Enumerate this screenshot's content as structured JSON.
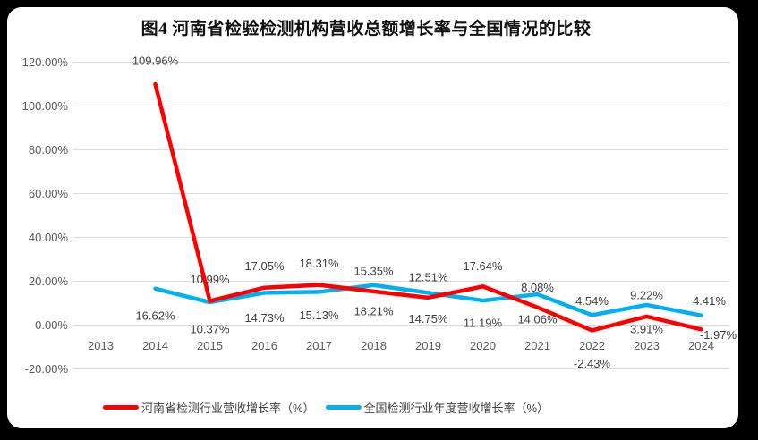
{
  "frame": {
    "outer_bg": "#000000",
    "panel_bg": "#ffffff"
  },
  "colors": {
    "grid": "#DCDCDC",
    "axis_text": "#595959",
    "label_text": "#3F3F3F",
    "leader": "#BFBFBF",
    "henan_red": "#FF0000",
    "national_blue": "#00B0F0"
  },
  "chart_data": {
    "type": "line",
    "title": "图4  河南省检验检测机构营收总额增长率与全国情况的比较",
    "categories": [
      "2013",
      "2014",
      "2015",
      "2016",
      "2017",
      "2018",
      "2019",
      "2020",
      "2021",
      "2022",
      "2023",
      "2024"
    ],
    "xlabel": "",
    "ylabel": "",
    "ylim": [
      -20,
      120
    ],
    "grid": true,
    "legend_position": "bottom",
    "y_ticks": [
      {
        "label": "120.00%",
        "value": 120
      },
      {
        "label": "100.00%",
        "value": 100
      },
      {
        "label": "80.00%",
        "value": 80
      },
      {
        "label": "60.00%",
        "value": 60
      },
      {
        "label": "40.00%",
        "value": 40
      },
      {
        "label": "20.00%",
        "value": 20
      },
      {
        "label": "0.00%",
        "value": 0
      },
      {
        "label": "-20.00%",
        "value": -20
      }
    ],
    "series": [
      {
        "name": "河南省检测行业营收增长率（%）",
        "color": "#FF0000",
        "values": [
          null,
          109.96,
          10.99,
          17.05,
          18.31,
          15.35,
          12.51,
          17.64,
          8.08,
          -2.43,
          3.91,
          -1.97
        ],
        "label_offsets": [
          null,
          [
            0,
            -26
          ],
          [
            0,
            -24
          ],
          [
            0,
            -24
          ],
          [
            0,
            -24
          ],
          [
            0,
            -23
          ],
          [
            0,
            -23
          ],
          [
            0,
            -23
          ],
          [
            0,
            -22
          ],
          [
            0,
            37
          ],
          [
            0,
            14
          ],
          [
            19,
            6
          ]
        ]
      },
      {
        "name": "全国检测行业年度营收增长率（%）",
        "color": "#00B0F0",
        "values": [
          null,
          16.62,
          10.37,
          14.73,
          15.13,
          18.21,
          14.75,
          11.19,
          14.06,
          4.54,
          9.22,
          4.41
        ],
        "label_offsets": [
          null,
          [
            0,
            30
          ],
          [
            0,
            30
          ],
          [
            0,
            28
          ],
          [
            0,
            26
          ],
          [
            0,
            29
          ],
          [
            0,
            29
          ],
          [
            0,
            25
          ],
          [
            0,
            28
          ],
          [
            0,
            -16
          ],
          [
            0,
            -11
          ],
          [
            9,
            -16
          ]
        ]
      }
    ],
    "leader_line": {
      "series_index": 0,
      "point_index": 9
    }
  }
}
